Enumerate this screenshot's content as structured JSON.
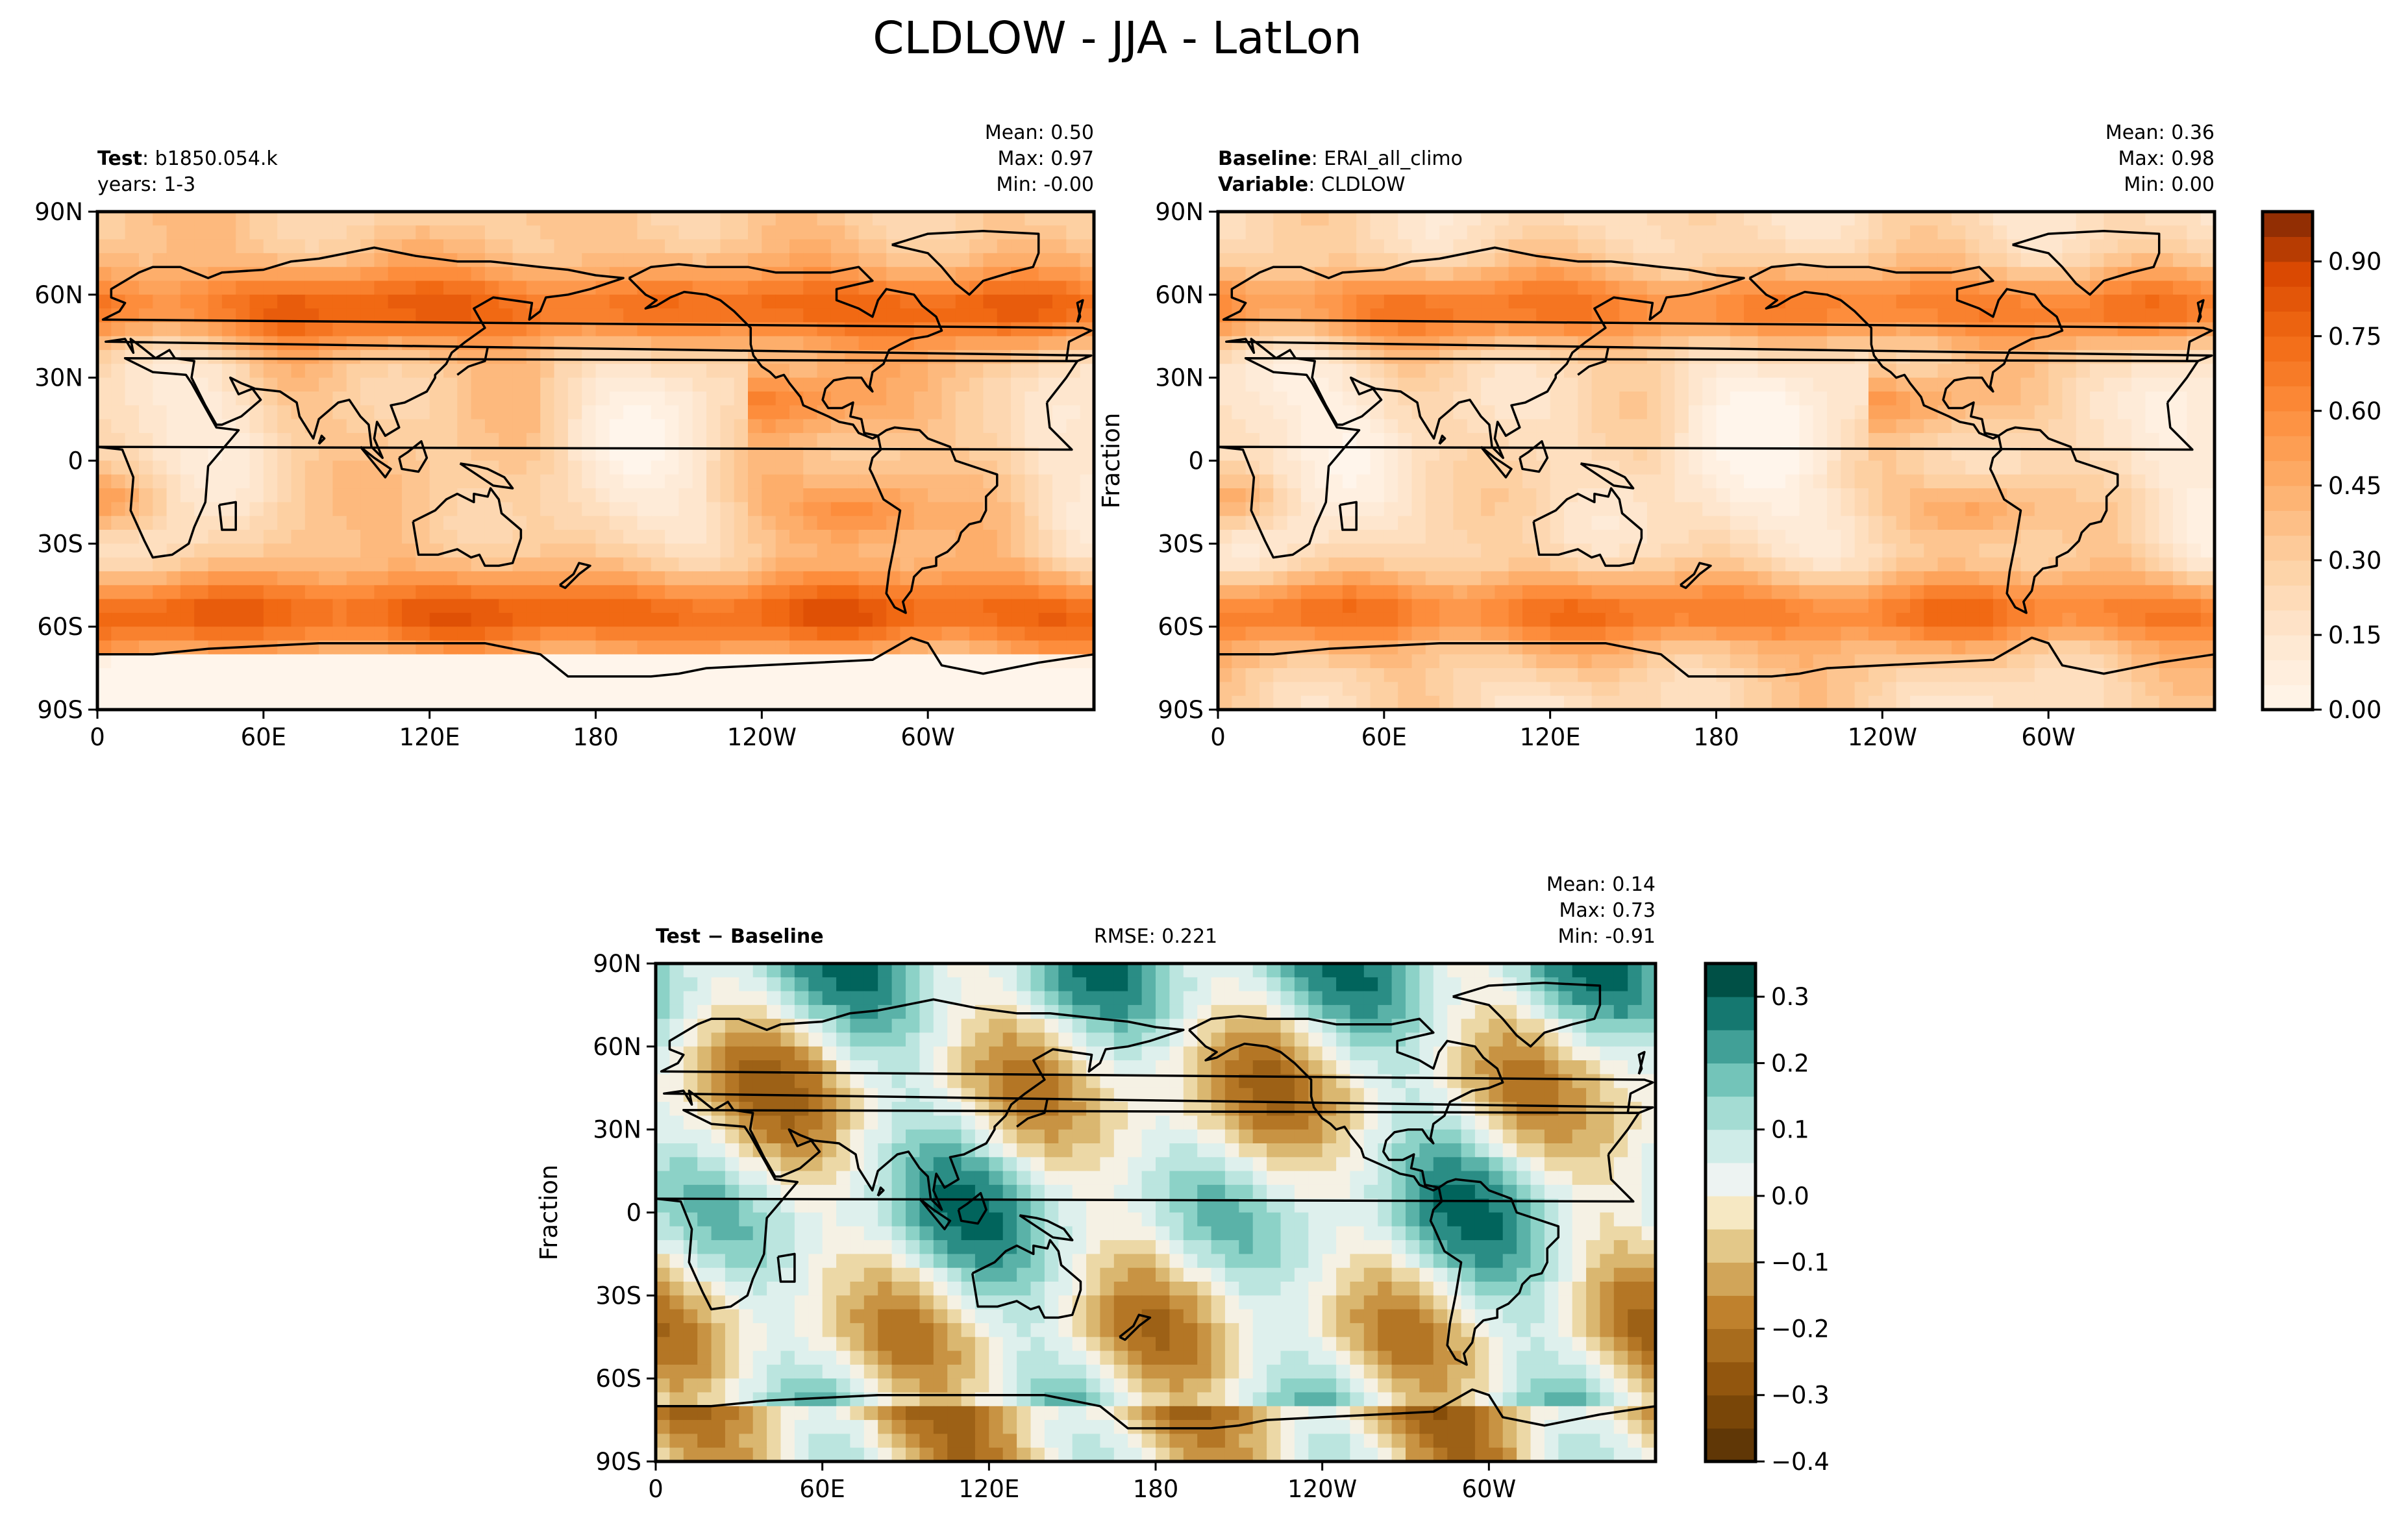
{
  "chart_data": {
    "type": "heatmap",
    "title": "CLDLOW - JJA - LatLon",
    "panels": [
      {
        "id": "test",
        "left_lines": [
          {
            "label": "Test",
            "value": ": b1850.054.k"
          },
          {
            "label": "",
            "value": "years: 1-3"
          }
        ],
        "center_text": "",
        "stats": [
          "Mean:  0.50",
          "Max:  0.97",
          "Min: -0.00"
        ],
        "ylabel": "",
        "colormap": "Oranges",
        "vmin": 0.0,
        "vmax": 1.0,
        "levels": 20
      },
      {
        "id": "baseline",
        "left_lines": [
          {
            "label": "Baseline",
            "value": ": ERAI_all_climo"
          },
          {
            "label": "Variable",
            "value": ": CLDLOW"
          }
        ],
        "center_text": "",
        "stats": [
          "Mean:  0.36",
          "Max:  0.98",
          "Min:  0.00"
        ],
        "ylabel": "Fraction",
        "colormap": "Oranges",
        "vmin": 0.0,
        "vmax": 1.0,
        "levels": 20,
        "colorbar_ticks": [
          "0.00",
          "0.15",
          "0.30",
          "0.45",
          "0.60",
          "0.75",
          "0.90"
        ]
      },
      {
        "id": "diff",
        "left_lines": [
          {
            "label": "Test − Baseline",
            "value": ""
          }
        ],
        "center_text": "RMSE: 0.221",
        "stats": [
          "Mean:  0.14",
          "Max:  0.73",
          "Min: -0.91"
        ],
        "ylabel": "Fraction",
        "colormap": "BrBG",
        "vmin": -0.4,
        "vmax": 0.35,
        "levels": 15,
        "colorbar_ticks": [
          "0.3",
          "0.2",
          "0.1",
          "0.0",
          "−0.1",
          "−0.2",
          "−0.3",
          "−0.4"
        ]
      }
    ],
    "x_ticks": [
      "0",
      "60E",
      "120E",
      "180",
      "120W",
      "60W"
    ],
    "y_ticks": [
      "90N",
      "60N",
      "30N",
      "0",
      "30S",
      "60S",
      "90S"
    ]
  }
}
